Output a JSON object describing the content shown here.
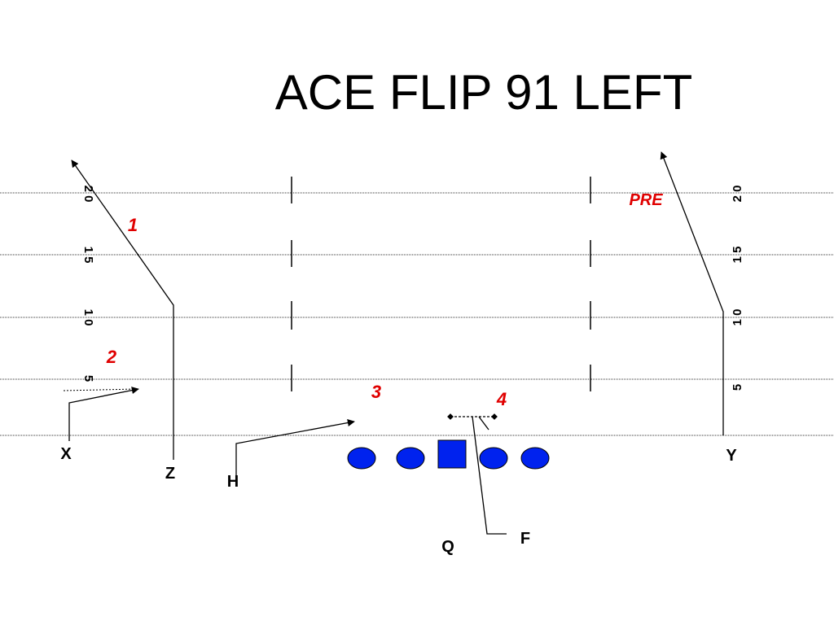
{
  "title": "ACE FLIP 91 LEFT",
  "yard_markers_left": [
    "2 0",
    "1 5",
    "1 0",
    "5"
  ],
  "yard_markers_right": [
    "2 0",
    "1 5",
    "1 0",
    "5"
  ],
  "players": [
    "X",
    "Z",
    "H",
    "Q",
    "F",
    "Y"
  ],
  "routes": [
    "1",
    "2",
    "3",
    "4",
    "PRE"
  ]
}
